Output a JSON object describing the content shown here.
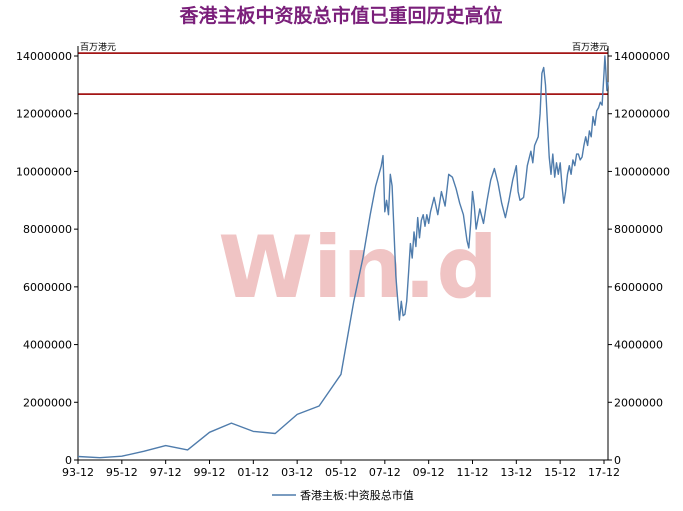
{
  "chart_data": {
    "type": "line",
    "title": "香港主板中资股总市值已重回历史高位",
    "watermark": "Win.d",
    "left_unit": "百万港元",
    "right_unit": "百万港元",
    "ylim": [
      0,
      14000000
    ],
    "y_ticks": [
      0,
      2000000,
      4000000,
      6000000,
      8000000,
      10000000,
      12000000,
      14000000
    ],
    "x_range": [
      1993.917,
      2018.1
    ],
    "x_ticks": [
      {
        "label": "93-12",
        "value": 1993.917
      },
      {
        "label": "95-12",
        "value": 1995.917
      },
      {
        "label": "97-12",
        "value": 1997.917
      },
      {
        "label": "99-12",
        "value": 1999.917
      },
      {
        "label": "01-12",
        "value": 2001.917
      },
      {
        "label": "03-12",
        "value": 2003.917
      },
      {
        "label": "05-12",
        "value": 2005.917
      },
      {
        "label": "07-12",
        "value": 2007.917
      },
      {
        "label": "09-12",
        "value": 2009.917
      },
      {
        "label": "11-12",
        "value": 2011.917
      },
      {
        "label": "13-12",
        "value": 2013.917
      },
      {
        "label": "15-12",
        "value": 2015.917
      },
      {
        "label": "17-12",
        "value": 2017.917
      }
    ],
    "reference_lines": [
      {
        "value": 14100000,
        "color": "#a31515"
      },
      {
        "value": 12680000,
        "color": "#a31515"
      }
    ],
    "grid": false,
    "legend_position": "bottom-center",
    "series": [
      {
        "name": "香港主板:中资股总市值",
        "color": "#4f7cac",
        "points": [
          [
            1993.917,
            120000
          ],
          [
            1994.917,
            80000
          ],
          [
            1995.917,
            130000
          ],
          [
            1996.917,
            300000
          ],
          [
            1997.917,
            500000
          ],
          [
            1998.917,
            350000
          ],
          [
            1999.917,
            960000
          ],
          [
            2000.917,
            1280000
          ],
          [
            2001.917,
            990000
          ],
          [
            2002.917,
            920000
          ],
          [
            2003.917,
            1580000
          ],
          [
            2004.917,
            1870000
          ],
          [
            2005.917,
            2970000
          ],
          [
            2006.5,
            5500000
          ],
          [
            2006.917,
            7000000
          ],
          [
            2007.25,
            8500000
          ],
          [
            2007.5,
            9500000
          ],
          [
            2007.75,
            10180000
          ],
          [
            2007.833,
            10550000
          ],
          [
            2007.917,
            8600000
          ],
          [
            2008.0,
            9000000
          ],
          [
            2008.083,
            8500000
          ],
          [
            2008.167,
            9900000
          ],
          [
            2008.25,
            9500000
          ],
          [
            2008.333,
            8000000
          ],
          [
            2008.417,
            6400000
          ],
          [
            2008.5,
            5600000
          ],
          [
            2008.583,
            4850000
          ],
          [
            2008.667,
            5500000
          ],
          [
            2008.75,
            5000000
          ],
          [
            2008.833,
            5050000
          ],
          [
            2008.917,
            5500000
          ],
          [
            2009.0,
            6500000
          ],
          [
            2009.083,
            7500000
          ],
          [
            2009.167,
            7000000
          ],
          [
            2009.25,
            7900000
          ],
          [
            2009.333,
            7400000
          ],
          [
            2009.417,
            8400000
          ],
          [
            2009.5,
            7700000
          ],
          [
            2009.583,
            8300000
          ],
          [
            2009.667,
            8500000
          ],
          [
            2009.75,
            8100000
          ],
          [
            2009.833,
            8500000
          ],
          [
            2009.917,
            8200000
          ],
          [
            2010.0,
            8600000
          ],
          [
            2010.167,
            9100000
          ],
          [
            2010.333,
            8500000
          ],
          [
            2010.5,
            9300000
          ],
          [
            2010.667,
            8800000
          ],
          [
            2010.833,
            9900000
          ],
          [
            2011.0,
            9800000
          ],
          [
            2011.167,
            9400000
          ],
          [
            2011.333,
            8900000
          ],
          [
            2011.5,
            8500000
          ],
          [
            2011.667,
            7600000
          ],
          [
            2011.75,
            7350000
          ],
          [
            2011.833,
            8200000
          ],
          [
            2011.917,
            9300000
          ],
          [
            2012.0,
            8800000
          ],
          [
            2012.083,
            8000000
          ],
          [
            2012.25,
            8700000
          ],
          [
            2012.417,
            8200000
          ],
          [
            2012.583,
            9000000
          ],
          [
            2012.75,
            9700000
          ],
          [
            2012.917,
            10100000
          ],
          [
            2013.083,
            9600000
          ],
          [
            2013.25,
            8900000
          ],
          [
            2013.417,
            8400000
          ],
          [
            2013.583,
            9000000
          ],
          [
            2013.75,
            9700000
          ],
          [
            2013.917,
            10200000
          ],
          [
            2014.0,
            9300000
          ],
          [
            2014.083,
            9000000
          ],
          [
            2014.25,
            9100000
          ],
          [
            2014.333,
            9600000
          ],
          [
            2014.417,
            10200000
          ],
          [
            2014.583,
            10700000
          ],
          [
            2014.667,
            10300000
          ],
          [
            2014.75,
            10900000
          ],
          [
            2014.917,
            11200000
          ],
          [
            2015.0,
            12000000
          ],
          [
            2015.083,
            13400000
          ],
          [
            2015.167,
            13600000
          ],
          [
            2015.25,
            13000000
          ],
          [
            2015.333,
            11700000
          ],
          [
            2015.417,
            10500000
          ],
          [
            2015.5,
            9900000
          ],
          [
            2015.583,
            10600000
          ],
          [
            2015.667,
            9800000
          ],
          [
            2015.75,
            10300000
          ],
          [
            2015.833,
            9900000
          ],
          [
            2015.917,
            10300000
          ],
          [
            2016.0,
            9500000
          ],
          [
            2016.083,
            8900000
          ],
          [
            2016.167,
            9300000
          ],
          [
            2016.25,
            9900000
          ],
          [
            2016.333,
            10200000
          ],
          [
            2016.417,
            9900000
          ],
          [
            2016.5,
            10400000
          ],
          [
            2016.583,
            10200000
          ],
          [
            2016.667,
            10600000
          ],
          [
            2016.75,
            10600000
          ],
          [
            2016.833,
            10400000
          ],
          [
            2016.917,
            10500000
          ],
          [
            2017.0,
            10900000
          ],
          [
            2017.083,
            11200000
          ],
          [
            2017.167,
            10900000
          ],
          [
            2017.25,
            11400000
          ],
          [
            2017.333,
            11200000
          ],
          [
            2017.417,
            11900000
          ],
          [
            2017.5,
            11600000
          ],
          [
            2017.583,
            12100000
          ],
          [
            2017.667,
            12200000
          ],
          [
            2017.75,
            12400000
          ],
          [
            2017.833,
            12300000
          ],
          [
            2017.917,
            13400000
          ],
          [
            2017.96,
            14000000
          ],
          [
            2018.0,
            13500000
          ],
          [
            2018.05,
            12800000
          ],
          [
            2018.1,
            13100000
          ]
        ]
      }
    ]
  }
}
